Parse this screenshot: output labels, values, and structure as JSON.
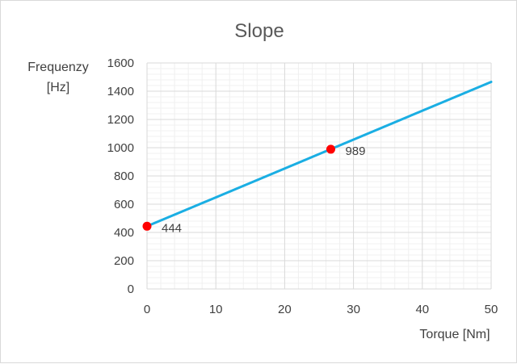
{
  "chart_data": {
    "type": "scatter",
    "title": "Slope",
    "xlabel": "Torque [Nm]",
    "ylabel_lines": [
      "Frequenzy",
      "[Hz]"
    ],
    "xlim": [
      0,
      50
    ],
    "ylim": [
      0,
      1600
    ],
    "x_major_step": 10,
    "y_major_step": 200,
    "x_minor_step": 2,
    "y_minor_step": 40,
    "grid": true,
    "legend": "none",
    "series": [
      {
        "kind": "line",
        "color": "#1aaee3",
        "x": [
          0,
          50
        ],
        "y": [
          444,
          1466
        ]
      },
      {
        "kind": "markers",
        "color": "#ff0000",
        "x": [
          0,
          26.7
        ],
        "y": [
          444,
          989
        ],
        "labels": [
          "444",
          "989"
        ]
      }
    ]
  }
}
